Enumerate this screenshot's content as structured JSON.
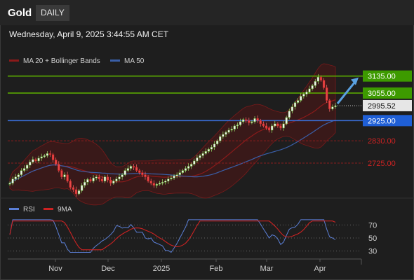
{
  "header": {
    "symbol": "Gold",
    "timeframe": "DAILY",
    "timestamp": "Wednesday, April 9, 2025 3:44:55 AM CET"
  },
  "chart_data": [
    {
      "type": "candlestick",
      "legend": [
        {
          "name": "MA 20 + Bollinger Bands",
          "color": "#8b1a1a"
        },
        {
          "name": "MA 50",
          "color": "#3a5fa8"
        }
      ],
      "x_ticks": [
        "Nov",
        "Dec",
        "2025",
        "Feb",
        "Mar",
        "Apr"
      ],
      "current_price": "2995.52",
      "levels": [
        {
          "label": "3135.00",
          "value": 3135,
          "kind": "resistance",
          "color": "#3d9a00",
          "line": "#5aa900"
        },
        {
          "label": "3055.00",
          "value": 3055,
          "kind": "resistance",
          "color": "#3d9a00",
          "line": "#5aa900"
        },
        {
          "label": "2925.00",
          "value": 2925,
          "kind": "support",
          "color": "#1f5fd6",
          "line": "#3a6fd8"
        },
        {
          "label": "2830.00",
          "value": 2830,
          "kind": "support-minor",
          "color": "#cc2222",
          "line": "#8a1d1d"
        },
        {
          "label": "2725.00",
          "value": 2725,
          "kind": "support-minor",
          "color": "#cc2222",
          "line": "#8a1d1d"
        }
      ],
      "ylim": [
        2560,
        3180
      ],
      "closes": [
        2630,
        2650,
        2660,
        2670,
        2690,
        2700,
        2715,
        2730,
        2742,
        2735,
        2748,
        2755,
        2760,
        2770,
        2765,
        2740,
        2720,
        2690,
        2660,
        2670,
        2640,
        2610,
        2600,
        2580,
        2595,
        2620,
        2635,
        2648,
        2640,
        2655,
        2660,
        2650,
        2640,
        2660,
        2645,
        2630,
        2640,
        2650,
        2660,
        2670,
        2690,
        2700,
        2710,
        2705,
        2690,
        2680,
        2670,
        2660,
        2640,
        2630,
        2620,
        2625,
        2630,
        2635,
        2640,
        2650,
        2655,
        2665,
        2670,
        2680,
        2690,
        2700,
        2710,
        2720,
        2735,
        2750,
        2760,
        2770,
        2780,
        2790,
        2800,
        2815,
        2830,
        2850,
        2860,
        2870,
        2880,
        2885,
        2900,
        2905,
        2920,
        2930,
        2925,
        2915,
        2920,
        2935,
        2925,
        2910,
        2900,
        2890,
        2880,
        2900,
        2910,
        2900,
        2890,
        2910,
        2940,
        2970,
        2990,
        3010,
        3020,
        3040,
        3050,
        3060,
        3075,
        3090,
        3110,
        3130,
        3115,
        3080,
        3020,
        2980,
        2990,
        2995
      ]
    },
    {
      "type": "line",
      "legend": [
        {
          "name": "RSI",
          "color": "#5b7fd6"
        },
        {
          "name": "9MA",
          "color": "#cc2222"
        }
      ],
      "y_ticks": [
        "70",
        "50",
        "30"
      ],
      "ylim": [
        20,
        80
      ]
    }
  ]
}
